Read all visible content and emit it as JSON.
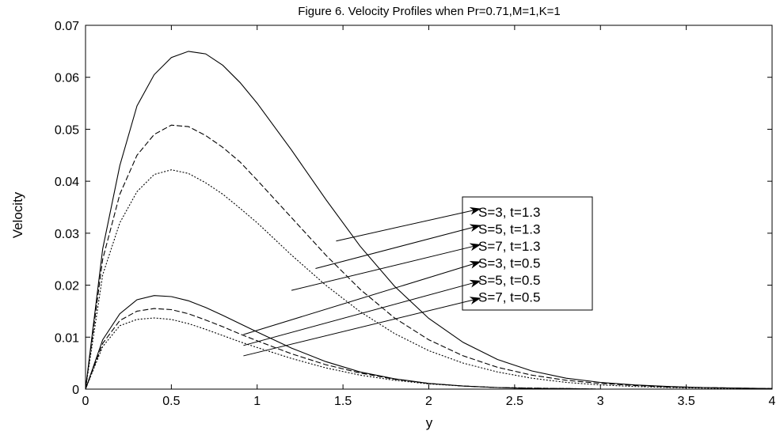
{
  "chart_data": {
    "type": "line",
    "title": "Figure 6. Velocity Profiles when Pr=0.71,M=1,K=1",
    "xlabel": "y",
    "ylabel": "Velocity",
    "xlim": [
      0,
      4
    ],
    "ylim": [
      0,
      0.07
    ],
    "xticks": [
      0,
      0.5,
      1,
      1.5,
      2,
      2.5,
      3,
      3.5,
      4
    ],
    "xtick_labels": [
      "0",
      "0.5",
      "1",
      "1.5",
      "2",
      "2.5",
      "3",
      "3.5",
      "4"
    ],
    "yticks": [
      0,
      0.01,
      0.02,
      0.03,
      0.04,
      0.05,
      0.06,
      0.07
    ],
    "ytick_labels": [
      "0",
      "0.01",
      "0.02",
      "0.03",
      "0.04",
      "0.05",
      "0.06",
      "0.07"
    ],
    "grid": false,
    "legend_placement": "right, inside plot area with arrows pointing to curves",
    "series": [
      {
        "name": "S=3, t=1.3",
        "style": "solid",
        "color": "#000000",
        "x": [
          0,
          0.1,
          0.2,
          0.3,
          0.4,
          0.5,
          0.6,
          0.7,
          0.8,
          0.9,
          1.0,
          1.2,
          1.4,
          1.6,
          1.8,
          2.0,
          2.2,
          2.4,
          2.6,
          2.8,
          3.0,
          3.2,
          3.4,
          3.6,
          3.8,
          4.0
        ],
        "y": [
          0,
          0.027,
          0.043,
          0.0545,
          0.0605,
          0.0638,
          0.065,
          0.0645,
          0.0623,
          0.059,
          0.055,
          0.046,
          0.0365,
          0.0275,
          0.0198,
          0.0136,
          0.009,
          0.0057,
          0.0035,
          0.0021,
          0.0013,
          0.0008,
          0.0005,
          0.0003,
          0.0002,
          0.0001
        ]
      },
      {
        "name": "S=5, t=1.3",
        "style": "dashed",
        "color": "#000000",
        "x": [
          0,
          0.1,
          0.2,
          0.3,
          0.4,
          0.5,
          0.6,
          0.7,
          0.8,
          0.9,
          1.0,
          1.2,
          1.4,
          1.6,
          1.8,
          2.0,
          2.2,
          2.4,
          2.6,
          2.8,
          3.0,
          3.2,
          3.4,
          3.6,
          3.8,
          4.0
        ],
        "y": [
          0,
          0.025,
          0.0375,
          0.045,
          0.049,
          0.0508,
          0.0505,
          0.0488,
          0.0465,
          0.0437,
          0.0402,
          0.033,
          0.0258,
          0.0192,
          0.0137,
          0.0095,
          0.0064,
          0.0042,
          0.0027,
          0.0017,
          0.0011,
          0.0007,
          0.0004,
          0.0003,
          0.0002,
          0.0001
        ]
      },
      {
        "name": "S=7, t=1.3",
        "style": "dotted",
        "color": "#000000",
        "x": [
          0,
          0.1,
          0.2,
          0.3,
          0.4,
          0.5,
          0.6,
          0.7,
          0.8,
          0.9,
          1.0,
          1.2,
          1.4,
          1.6,
          1.8,
          2.0,
          2.2,
          2.4,
          2.6,
          2.8,
          3.0,
          3.2,
          3.4,
          3.6,
          3.8,
          4.0
        ],
        "y": [
          0,
          0.022,
          0.032,
          0.038,
          0.0413,
          0.0422,
          0.0415,
          0.0397,
          0.0375,
          0.0348,
          0.032,
          0.0258,
          0.02,
          0.0149,
          0.0107,
          0.0074,
          0.005,
          0.0033,
          0.0021,
          0.0013,
          0.0008,
          0.0005,
          0.0003,
          0.0002,
          0.0001,
          0.0001
        ]
      },
      {
        "name": "S=3, t=0.5",
        "style": "solid",
        "color": "#000000",
        "x": [
          0,
          0.1,
          0.2,
          0.3,
          0.4,
          0.5,
          0.6,
          0.7,
          0.8,
          0.9,
          1.0,
          1.2,
          1.4,
          1.6,
          1.8,
          2.0,
          2.2,
          2.4,
          2.6,
          2.8,
          3.0
        ],
        "y": [
          0,
          0.0095,
          0.0145,
          0.0172,
          0.018,
          0.0178,
          0.017,
          0.0157,
          0.0142,
          0.0126,
          0.011,
          0.0079,
          0.0053,
          0.0033,
          0.002,
          0.0011,
          0.0006,
          0.0003,
          0.0001,
          0.0001,
          0
        ]
      },
      {
        "name": "S=5, t=0.5",
        "style": "dashed",
        "color": "#000000",
        "x": [
          0,
          0.1,
          0.2,
          0.3,
          0.4,
          0.5,
          0.6,
          0.7,
          0.8,
          0.9,
          1.0,
          1.2,
          1.4,
          1.6,
          1.8,
          2.0,
          2.2,
          2.4,
          2.6,
          2.8,
          3.0
        ],
        "y": [
          0,
          0.0088,
          0.0132,
          0.015,
          0.0155,
          0.0153,
          0.0145,
          0.0133,
          0.012,
          0.0106,
          0.0093,
          0.0068,
          0.0047,
          0.0031,
          0.0019,
          0.0011,
          0.0006,
          0.0003,
          0.0002,
          0.0001,
          0
        ]
      },
      {
        "name": "S=7, t=0.5",
        "style": "dotted",
        "color": "#000000",
        "x": [
          0,
          0.1,
          0.2,
          0.3,
          0.4,
          0.5,
          0.6,
          0.7,
          0.8,
          0.9,
          1.0,
          1.2,
          1.4,
          1.6,
          1.8,
          2.0,
          2.2,
          2.4,
          2.6,
          2.8,
          3.0
        ],
        "y": [
          0,
          0.0082,
          0.0122,
          0.0134,
          0.0137,
          0.0134,
          0.0126,
          0.0115,
          0.0103,
          0.0091,
          0.008,
          0.0059,
          0.0041,
          0.0027,
          0.0017,
          0.001,
          0.0006,
          0.0003,
          0.0002,
          0.0001,
          0
        ]
      }
    ],
    "annotations": [
      {
        "series": "S=3, t=1.3",
        "from": [
          1.46,
          0.0285
        ],
        "to": [
          2.3,
          0.0347
        ]
      },
      {
        "series": "S=5, t=1.3",
        "from": [
          1.34,
          0.0232
        ],
        "to": [
          2.3,
          0.0315
        ]
      },
      {
        "series": "S=7, t=1.3",
        "from": [
          1.2,
          0.019
        ],
        "to": [
          2.3,
          0.0278
        ]
      },
      {
        "series": "S=3, t=0.5",
        "from": [
          0.92,
          0.0105
        ],
        "to": [
          2.3,
          0.0245
        ]
      },
      {
        "series": "S=5, t=0.5",
        "from": [
          0.92,
          0.0084
        ],
        "to": [
          2.3,
          0.0208
        ]
      },
      {
        "series": "S=7, t=0.5",
        "from": [
          0.92,
          0.0064
        ],
        "to": [
          2.3,
          0.0175
        ]
      }
    ]
  }
}
